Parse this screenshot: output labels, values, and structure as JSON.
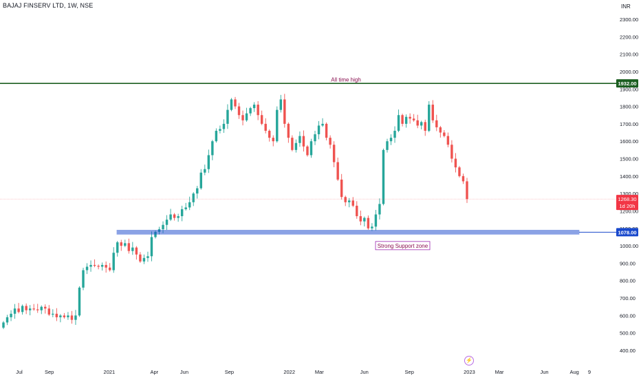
{
  "header": {
    "title": "BAJAJ FINSERV LTD, 1W, NSE",
    "currency": "INR"
  },
  "chart_data": {
    "type": "candlestick",
    "title": "BAJAJ FINSERV LTD, 1W, NSE",
    "interval": "1W",
    "exchange": "NSE",
    "currency": "INR",
    "ylim": [
      350,
      2400
    ],
    "yticks": [
      400,
      500,
      600,
      700,
      800,
      900,
      1000,
      1100,
      1200,
      1300,
      1400,
      1500,
      1600,
      1700,
      1800,
      1900,
      2000,
      2100,
      2200,
      2300
    ],
    "ytick_labels": [
      "400.00",
      "500.00",
      "600.00",
      "700.00",
      "800.00",
      "900.00",
      "1000.00",
      "1100.00",
      "1200.00",
      "1300.00",
      "1400.00",
      "1500.00",
      "1600.00",
      "1700.00",
      "1800.00",
      "1900.00",
      "2000.00",
      "2100.00",
      "2200.00",
      "2300.00"
    ],
    "x_start_month": "2020-06",
    "x_end_month": "2023-09",
    "xticks": [
      {
        "month": "2020-07",
        "label": "Jul"
      },
      {
        "month": "2020-09",
        "label": "Sep"
      },
      {
        "month": "2021-01",
        "label": "2021"
      },
      {
        "month": "2021-04",
        "label": "Apr"
      },
      {
        "month": "2021-06",
        "label": "Jun"
      },
      {
        "month": "2021-09",
        "label": "Sep"
      },
      {
        "month": "2022-01",
        "label": "2022"
      },
      {
        "month": "2022-03",
        "label": "Mar"
      },
      {
        "month": "2022-06",
        "label": "Jun"
      },
      {
        "month": "2022-09",
        "label": "Sep"
      },
      {
        "month": "2023-01",
        "label": "2023"
      },
      {
        "month": "2023-03",
        "label": "Mar"
      },
      {
        "month": "2023-06",
        "label": "Jun"
      },
      {
        "month": "2023-08",
        "label": "Aug"
      },
      {
        "month": "2023-09",
        "label": "9"
      }
    ],
    "up_color": "#26a69a",
    "down_color": "#ef5350",
    "candles_close": [
      560,
      590,
      610,
      640,
      620,
      655,
      630,
      640,
      635,
      630,
      650,
      640,
      605,
      610,
      590,
      600,
      590,
      600,
      575,
      600,
      760,
      860,
      880,
      890,
      885,
      880,
      890,
      875,
      860,
      960,
      1020,
      1000,
      1015,
      970,
      990,
      950,
      910,
      930,
      940,
      1050,
      1080,
      1095,
      1120,
      1150,
      1180,
      1160,
      1170,
      1210,
      1220,
      1250,
      1300,
      1330,
      1420,
      1440,
      1520,
      1600,
      1660,
      1670,
      1700,
      1780,
      1840,
      1800,
      1750,
      1720,
      1760,
      1790,
      1810,
      1750,
      1700,
      1660,
      1620,
      1600,
      1780,
      1840,
      1700,
      1620,
      1550,
      1590,
      1630,
      1570,
      1520,
      1600,
      1640,
      1690,
      1700,
      1620,
      1580,
      1480,
      1380,
      1280,
      1250,
      1260,
      1230,
      1170,
      1140,
      1160,
      1100,
      1110,
      1180,
      1240,
      1550,
      1600,
      1620,
      1660,
      1750,
      1700,
      1740,
      1730,
      1720,
      1690,
      1710,
      1660,
      1810,
      1720,
      1680,
      1650,
      1630,
      1580,
      1500,
      1450,
      1400,
      1370,
      1268
    ],
    "price_levels": [
      {
        "name": "All time high",
        "price": 1932,
        "price_label": "1932.00",
        "color": "#1b5e20"
      },
      {
        "name": "Strong Support zone",
        "price": 1078,
        "price_label": "1078.00",
        "color": "#1848cc"
      }
    ],
    "last_price": {
      "price": 1268.3,
      "label": "1268.30",
      "countdown": "1d 20h",
      "color": "#f23645"
    },
    "annotations": [
      {
        "text": "All time high",
        "price": 1955,
        "color": "#880e4f"
      },
      {
        "text": "Strong Support zone",
        "price": 1005,
        "color": "#880e4f",
        "boxed": true
      }
    ],
    "grid": false,
    "legend": "none"
  },
  "icons": {
    "flash": "lightning-icon"
  }
}
